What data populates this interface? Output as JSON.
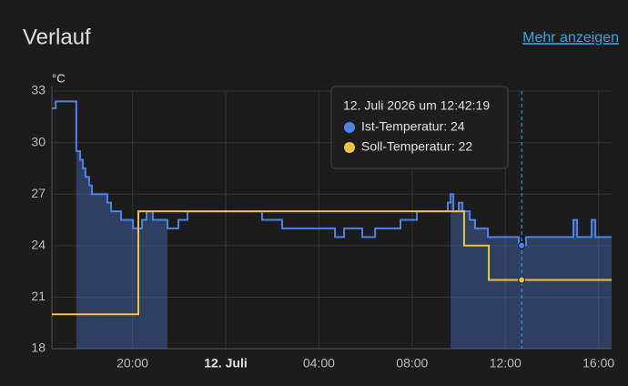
{
  "chart_data": {
    "type": "line",
    "step": true,
    "title": "Verlauf",
    "link": "Mehr anzeigen",
    "y_label": "°C",
    "ylim": [
      18,
      33
    ],
    "yticks": [
      18,
      21,
      24,
      27,
      30,
      33
    ],
    "xlim": [
      -7.46,
      16.56
    ],
    "xticks": [
      {
        "value": -4,
        "label": "20:00"
      },
      {
        "value": 0,
        "label": "12. Juli"
      },
      {
        "value": 4,
        "label": "04:00"
      },
      {
        "value": 8,
        "label": "08:00"
      },
      {
        "value": 12,
        "label": "12:00"
      },
      {
        "value": 16,
        "label": "16:00"
      }
    ],
    "grid": true,
    "shaded_x": [
      [
        -6.41,
        -2.5
      ],
      [
        9.65,
        16.56
      ]
    ],
    "series": [
      {
        "name": "Ist-Temperatur",
        "color": "#4f82e6",
        "x": [
          -7.46,
          -7.3,
          -6.41,
          -6.25,
          -6.13,
          -6.02,
          -5.86,
          -5.74,
          -5.08,
          -4.92,
          -4.49,
          -3.98,
          -3.59,
          -3.4,
          -3.13,
          -2.5,
          -2.03,
          -1.64,
          1.56,
          2.42,
          4.69,
          5.08,
          5.86,
          6.41,
          7.5,
          8.2,
          9.53,
          9.65,
          9.77,
          10.0,
          10.16,
          10.47,
          10.7,
          11.25,
          12.58,
          12.89,
          14.92,
          15.08,
          15.7,
          15.86,
          16.56
        ],
        "values": [
          32.0,
          32.4,
          29.5,
          29.0,
          28.5,
          28.0,
          27.5,
          27.0,
          26.5,
          26.0,
          25.5,
          25.0,
          25.5,
          26.0,
          25.5,
          25.0,
          25.5,
          26.0,
          25.5,
          25.0,
          24.5,
          25.0,
          24.5,
          25.0,
          25.5,
          26.0,
          26.5,
          27.0,
          26.0,
          26.5,
          26.0,
          25.5,
          25.0,
          24.5,
          24.0,
          24.5,
          25.5,
          24.5,
          25.5,
          24.5,
          24.5
        ]
      },
      {
        "name": "Soll-Temperatur",
        "color": "#f2c242",
        "x": [
          -7.46,
          -3.75,
          10.23,
          11.29,
          16.56
        ],
        "values": [
          20,
          26,
          24,
          22,
          22
        ]
      }
    ],
    "tooltip": {
      "x": 12.7,
      "title": "12. Juli 2026 um 12:42:19",
      "labels": [
        "Ist-Temperatur: 24",
        "Soll-Temperatur: 22"
      ],
      "values": [
        24,
        22
      ]
    }
  }
}
